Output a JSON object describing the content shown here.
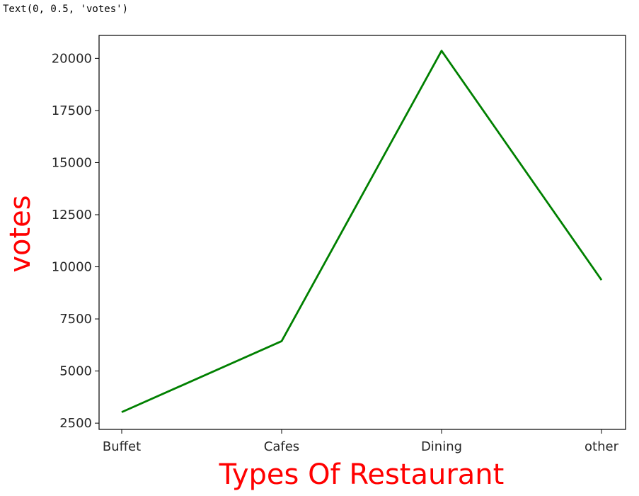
{
  "output_text": "Text(0, 0.5, 'votes')",
  "chart_data": {
    "type": "line",
    "categories": [
      "Buffet",
      "Cafes",
      "Dining",
      "other"
    ],
    "series": [
      {
        "values": [
          3028,
          6434,
          20363,
          9367
        ],
        "color": "#008000"
      }
    ],
    "xlabel": "Types Of Restaurant",
    "ylabel": "votes",
    "ylim": [
      2200,
      21100
    ],
    "yticks": [
      2500,
      5000,
      7500,
      10000,
      12500,
      15000,
      17500,
      20000
    ],
    "axis_label_color": "#ff0000",
    "grid": false
  }
}
